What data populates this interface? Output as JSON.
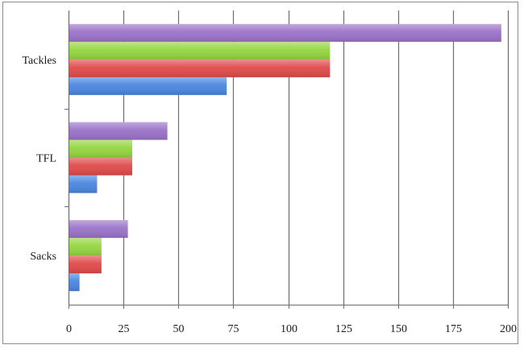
{
  "chart_data": {
    "type": "bar",
    "orientation": "horizontal",
    "categories": [
      "Tackles",
      "TFL",
      "Sacks"
    ],
    "series": [
      {
        "values": [
          72,
          13,
          5
        ],
        "color": "#4a86e0"
      },
      {
        "values": [
          119,
          29,
          15
        ],
        "color": "#e04a4a"
      },
      {
        "values": [
          119,
          29,
          15
        ],
        "color": "#94d640"
      },
      {
        "values": [
          197,
          45,
          27
        ],
        "color": "#9a72c8"
      }
    ],
    "xlim": [
      0,
      200
    ],
    "xticks": [
      "0",
      "25",
      "50",
      "75",
      "100",
      "125",
      "150",
      "175",
      "200"
    ],
    "grid": true,
    "legend": "none",
    "title": "",
    "xlabel": "",
    "ylabel": ""
  }
}
